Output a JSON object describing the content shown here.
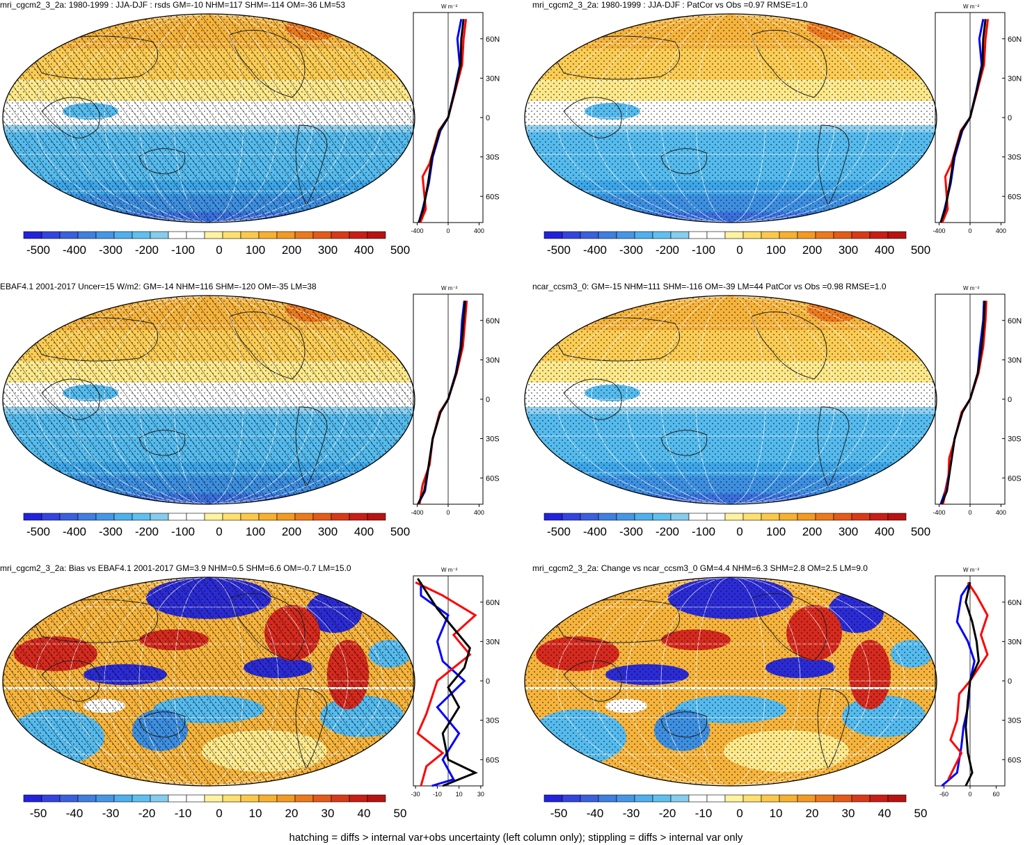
{
  "caption": "hatching = diffs > internal var+obs uncertainty (left column only); stippling = diffs > internal var only",
  "colors": {
    "blue_dark": "#2b2bd6",
    "blue_mid": "#3d8fe0",
    "blue_light": "#55bbee",
    "white": "#ffffff",
    "yellow_light": "#fde98a",
    "orange": "#f6b43c",
    "red": "#d62a1e"
  },
  "zonal_axis": {
    "unit": "W m⁻²",
    "lat_labels": [
      "60N",
      "30N",
      "0",
      "30S",
      "60S"
    ]
  },
  "chart_data": [
    {
      "type": "heatmap",
      "panel": "top-left",
      "title": "mri_cgcm2_3_2a: 1980-1999 : JJA-DJF : rsds GM=-10 NHM=117 SHM=-114 OM=-36 LM=53",
      "colorbar_ticks": [
        "-500",
        "-400",
        "-300",
        "-200",
        "-100",
        "0",
        "100",
        "200",
        "300",
        "400",
        "500"
      ],
      "zonal_xticks": [
        "-400",
        "0",
        "400"
      ],
      "hatching": true,
      "stippling": true,
      "zonal_lines": [
        {
          "color": "#0000ff",
          "points": [
            [
              -380,
              -80
            ],
            [
              -330,
              -70
            ],
            [
              -250,
              -50
            ],
            [
              -200,
              -30
            ],
            [
              -100,
              -10
            ],
            [
              0,
              0
            ],
            [
              80,
              20
            ],
            [
              150,
              40
            ],
            [
              120,
              60
            ],
            [
              170,
              75
            ]
          ]
        },
        {
          "color": "#ff0000",
          "points": [
            [
              -360,
              -80
            ],
            [
              -290,
              -70
            ],
            [
              -330,
              -45
            ],
            [
              -240,
              -35
            ],
            [
              -120,
              -10
            ],
            [
              0,
              0
            ],
            [
              90,
              20
            ],
            [
              180,
              40
            ],
            [
              200,
              60
            ],
            [
              230,
              75
            ]
          ]
        },
        {
          "color": "#000000",
          "points": [
            [
              -380,
              -80
            ],
            [
              -320,
              -70
            ],
            [
              -260,
              -50
            ],
            [
              -210,
              -30
            ],
            [
              -110,
              -10
            ],
            [
              0,
              0
            ],
            [
              85,
              20
            ],
            [
              160,
              40
            ],
            [
              170,
              60
            ],
            [
              200,
              75
            ]
          ]
        }
      ]
    },
    {
      "type": "heatmap",
      "panel": "top-right",
      "title": "mri_cgcm2_3_2a: 1980-1999 : JJA-DJF : PatCor vs Obs =0.97 RMSE=1.0",
      "colorbar_ticks": [
        "-500",
        "-400",
        "-300",
        "-200",
        "-100",
        "0",
        "100",
        "200",
        "300",
        "400",
        "500"
      ],
      "zonal_xticks": [
        "-400",
        "0",
        "400"
      ],
      "hatching": false,
      "stippling": true,
      "zonal_lines": [
        {
          "color": "#0000ff",
          "points": [
            [
              -380,
              -80
            ],
            [
              -330,
              -70
            ],
            [
              -250,
              -50
            ],
            [
              -200,
              -30
            ],
            [
              -100,
              -10
            ],
            [
              0,
              0
            ],
            [
              80,
              20
            ],
            [
              150,
              40
            ],
            [
              120,
              60
            ],
            [
              170,
              75
            ]
          ]
        },
        {
          "color": "#ff0000",
          "points": [
            [
              -360,
              -80
            ],
            [
              -290,
              -70
            ],
            [
              -320,
              -45
            ],
            [
              -240,
              -35
            ],
            [
              -120,
              -10
            ],
            [
              0,
              0
            ],
            [
              90,
              20
            ],
            [
              180,
              40
            ],
            [
              200,
              60
            ],
            [
              230,
              75
            ]
          ]
        },
        {
          "color": "#000000",
          "points": [
            [
              -380,
              -80
            ],
            [
              -320,
              -70
            ],
            [
              -260,
              -50
            ],
            [
              -210,
              -30
            ],
            [
              -110,
              -10
            ],
            [
              0,
              0
            ],
            [
              85,
              20
            ],
            [
              160,
              40
            ],
            [
              170,
              60
            ],
            [
              200,
              75
            ]
          ]
        }
      ]
    },
    {
      "type": "heatmap",
      "panel": "middle-left",
      "title": "EBAF4.1 2001-2017 Uncer=15 W/m2: GM=-14 NHM=116 SHM=-120 OM=-35 LM=38",
      "colorbar_ticks": [
        "-500",
        "-400",
        "-300",
        "-200",
        "-100",
        "0",
        "100",
        "200",
        "300",
        "400",
        "500"
      ],
      "zonal_xticks": [
        "-400",
        "0",
        "400"
      ],
      "hatching": true,
      "stippling": true,
      "zonal_lines": [
        {
          "color": "#0000ff",
          "points": [
            [
              -390,
              -80
            ],
            [
              -300,
              -70
            ],
            [
              -250,
              -50
            ],
            [
              -200,
              -30
            ],
            [
              -100,
              -10
            ],
            [
              0,
              0
            ],
            [
              100,
              20
            ],
            [
              160,
              40
            ],
            [
              180,
              60
            ],
            [
              210,
              75
            ]
          ]
        },
        {
          "color": "#ff0000",
          "points": [
            [
              -370,
              -80
            ],
            [
              -330,
              -65
            ],
            [
              -240,
              -50
            ],
            [
              -200,
              -30
            ],
            [
              -110,
              -10
            ],
            [
              0,
              0
            ],
            [
              110,
              20
            ],
            [
              190,
              40
            ],
            [
              220,
              60
            ],
            [
              240,
              75
            ]
          ]
        },
        {
          "color": "#000000",
          "points": [
            [
              -390,
              -80
            ],
            [
              -310,
              -70
            ],
            [
              -250,
              -50
            ],
            [
              -200,
              -30
            ],
            [
              -100,
              -10
            ],
            [
              0,
              0
            ],
            [
              105,
              20
            ],
            [
              170,
              40
            ],
            [
              200,
              60
            ],
            [
              220,
              75
            ]
          ]
        }
      ]
    },
    {
      "type": "heatmap",
      "panel": "middle-right",
      "title": "ncar_ccsm3_0: GM=-15 NHM=111 SHM=-116 OM=-39 LM=44 PatCor vs Obs =0.98 RMSE=1.0",
      "colorbar_ticks": [
        "-500",
        "-400",
        "-300",
        "-200",
        "-100",
        "0",
        "100",
        "200",
        "300",
        "400",
        "500"
      ],
      "zonal_xticks": [
        "-400",
        "0",
        "400"
      ],
      "hatching": false,
      "stippling": true,
      "zonal_lines": [
        {
          "color": "#0000ff",
          "points": [
            [
              -380,
              -80
            ],
            [
              -320,
              -70
            ],
            [
              -250,
              -50
            ],
            [
              -200,
              -30
            ],
            [
              -100,
              -10
            ],
            [
              0,
              0
            ],
            [
              100,
              20
            ],
            [
              130,
              40
            ],
            [
              170,
              60
            ],
            [
              180,
              75
            ]
          ]
        },
        {
          "color": "#ff0000",
          "points": [
            [
              -350,
              -80
            ],
            [
              -280,
              -60
            ],
            [
              -270,
              -45
            ],
            [
              -220,
              -35
            ],
            [
              -110,
              -10
            ],
            [
              0,
              0
            ],
            [
              110,
              20
            ],
            [
              170,
              40
            ],
            [
              200,
              60
            ],
            [
              210,
              75
            ]
          ]
        },
        {
          "color": "#000000",
          "points": [
            [
              -370,
              -80
            ],
            [
              -300,
              -70
            ],
            [
              -250,
              -50
            ],
            [
              -200,
              -30
            ],
            [
              -100,
              -10
            ],
            [
              0,
              0
            ],
            [
              100,
              20
            ],
            [
              150,
              40
            ],
            [
              180,
              60
            ],
            [
              190,
              75
            ]
          ]
        }
      ]
    },
    {
      "type": "heatmap",
      "panel": "bottom-left",
      "title": "mri_cgcm2_3_2a: Bias vs EBAF4.1 2001-2017 GM=3.9 NHM=0.5 SHM=6.6 OM=-0.7 LM=15.0",
      "colorbar_ticks": [
        "-50",
        "-40",
        "-30",
        "-20",
        "-10",
        "0",
        "10",
        "20",
        "30",
        "40",
        "50"
      ],
      "zonal_xticks": [
        "-30",
        "-10",
        "10",
        "30"
      ],
      "hatching": true,
      "stippling": true,
      "zonal_lines": [
        {
          "color": "#0000ff",
          "points": [
            [
              -15,
              -80
            ],
            [
              5,
              -75
            ],
            [
              -5,
              -60
            ],
            [
              10,
              -40
            ],
            [
              -10,
              -20
            ],
            [
              15,
              0
            ],
            [
              -5,
              15
            ],
            [
              -10,
              30
            ],
            [
              0,
              50
            ],
            [
              -25,
              65
            ],
            [
              -25,
              75
            ]
          ]
        },
        {
          "color": "#ff0000",
          "points": [
            [
              -25,
              -80
            ],
            [
              -20,
              -65
            ],
            [
              -5,
              -55
            ],
            [
              -28,
              -40
            ],
            [
              -20,
              -25
            ],
            [
              -10,
              0
            ],
            [
              20,
              20
            ],
            [
              5,
              35
            ],
            [
              25,
              50
            ],
            [
              -5,
              65
            ],
            [
              -30,
              75
            ]
          ]
        },
        {
          "color": "#000000",
          "points": [
            [
              -5,
              -80
            ],
            [
              25,
              -70
            ],
            [
              0,
              -60
            ],
            [
              -5,
              -40
            ],
            [
              10,
              -20
            ],
            [
              0,
              -5
            ],
            [
              15,
              10
            ],
            [
              20,
              25
            ],
            [
              5,
              40
            ],
            [
              -10,
              55
            ],
            [
              -28,
              78
            ]
          ]
        }
      ]
    },
    {
      "type": "heatmap",
      "panel": "bottom-right",
      "title": "mri_cgcm2_3_2a: Change vs ncar_ccsm3_0 GM=4.4 NHM=6.3 SHM=2.8 OM=2.5 LM=9.0",
      "colorbar_ticks": [
        "-50",
        "-40",
        "-30",
        "-20",
        "-10",
        "0",
        "10",
        "20",
        "30",
        "40",
        "50"
      ],
      "zonal_xticks": [
        "-60",
        "0",
        "60"
      ],
      "hatching": false,
      "stippling": true,
      "zonal_lines": [
        {
          "color": "#0000ff",
          "points": [
            [
              -65,
              -80
            ],
            [
              -30,
              -70
            ],
            [
              -20,
              -50
            ],
            [
              -15,
              -35
            ],
            [
              -5,
              -20
            ],
            [
              0,
              0
            ],
            [
              10,
              15
            ],
            [
              -5,
              30
            ],
            [
              -30,
              45
            ],
            [
              -20,
              65
            ],
            [
              0,
              75
            ]
          ]
        },
        {
          "color": "#ff0000",
          "points": [
            [
              -50,
              -75
            ],
            [
              -20,
              -55
            ],
            [
              -45,
              -45
            ],
            [
              -30,
              -30
            ],
            [
              -25,
              -10
            ],
            [
              0,
              0
            ],
            [
              40,
              20
            ],
            [
              25,
              35
            ],
            [
              40,
              50
            ],
            [
              15,
              65
            ],
            [
              -5,
              75
            ]
          ]
        },
        {
          "color": "#000000",
          "points": [
            [
              -10,
              -80
            ],
            [
              5,
              -70
            ],
            [
              -5,
              -55
            ],
            [
              -10,
              -35
            ],
            [
              -5,
              -15
            ],
            [
              0,
              0
            ],
            [
              20,
              15
            ],
            [
              15,
              30
            ],
            [
              5,
              45
            ],
            [
              -10,
              60
            ],
            [
              0,
              75
            ]
          ]
        }
      ]
    }
  ]
}
